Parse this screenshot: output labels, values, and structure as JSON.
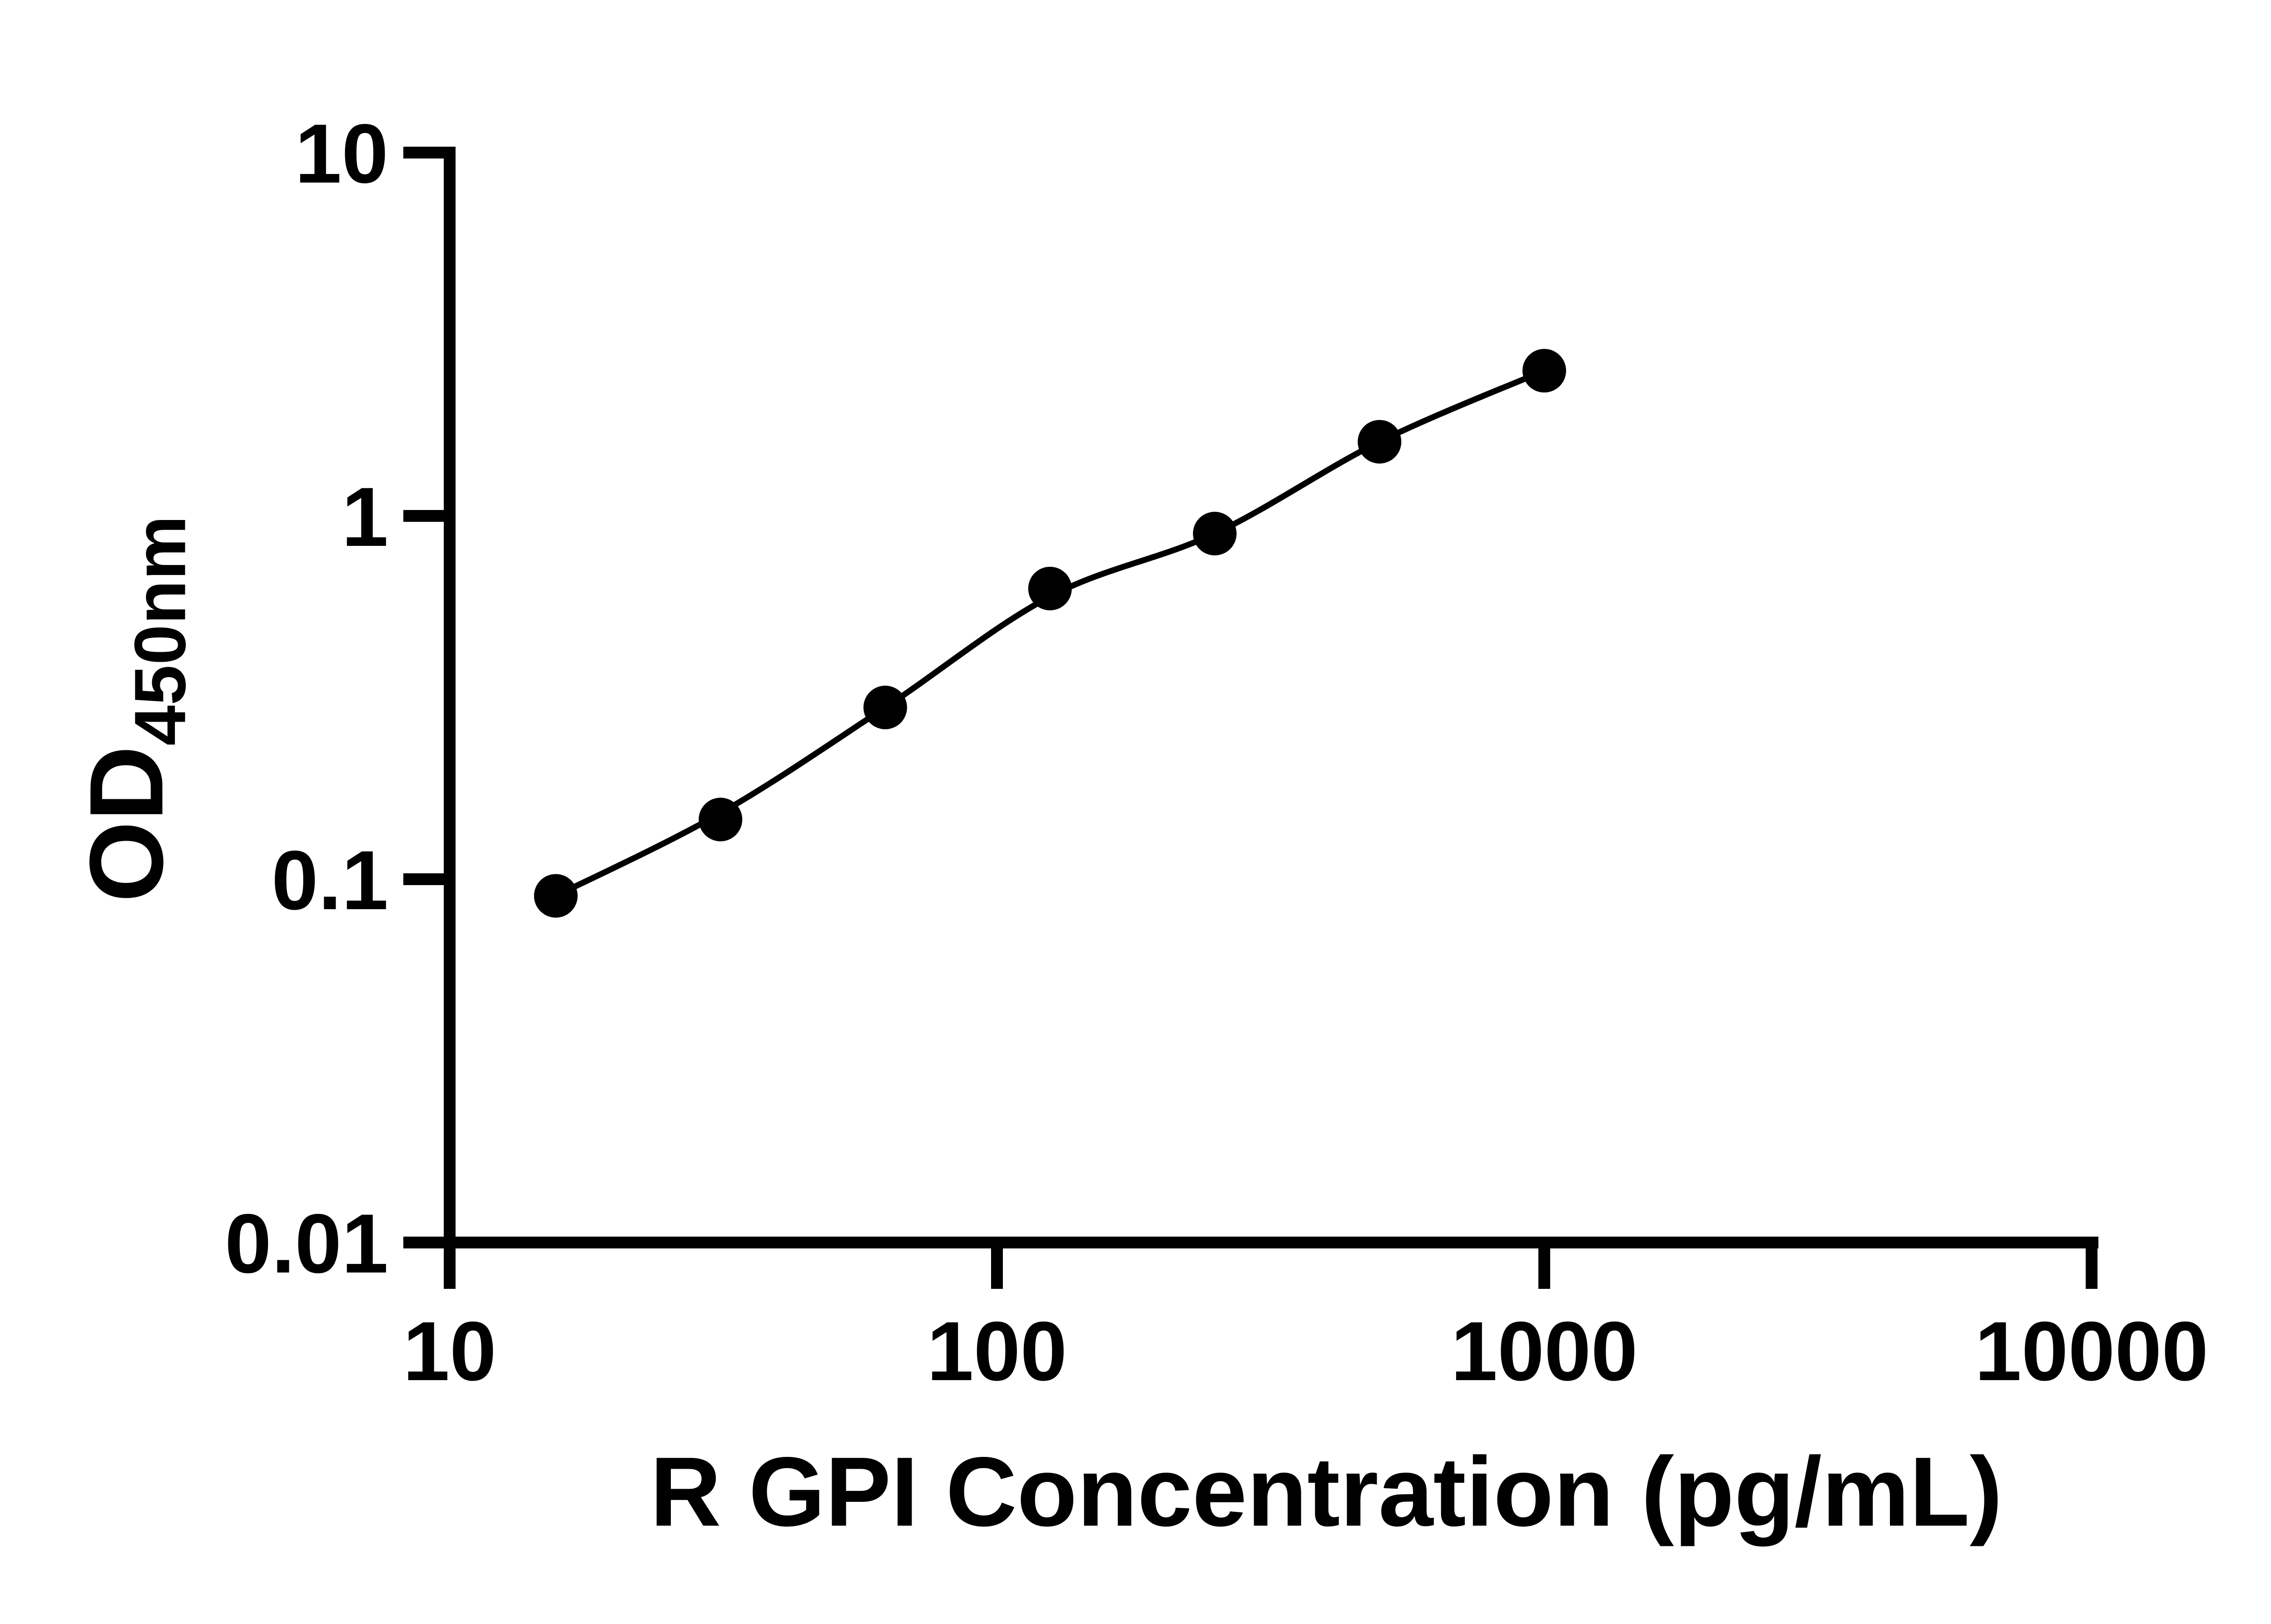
{
  "figure": {
    "background": "#ffffff",
    "ink_color": "#000000"
  },
  "chart_data": {
    "type": "scatter",
    "title": "",
    "xlabel": "R GPI Concentration (pg/mL)",
    "ylabel_main": "OD",
    "ylabel_sub": "450nm",
    "x_scale": "log",
    "y_scale": "log",
    "xlim": [
      10,
      10000
    ],
    "ylim": [
      0.01,
      10
    ],
    "x_ticks": [
      10,
      100,
      1000,
      10000
    ],
    "x_tick_labels": [
      "10",
      "100",
      "1000",
      "10000"
    ],
    "y_ticks": [
      10,
      1,
      0.1,
      0.01
    ],
    "y_tick_labels": [
      "10",
      "1",
      "0.1",
      "0.01"
    ],
    "grid": false,
    "legend": null,
    "series": [
      {
        "name": "standard-curve-points",
        "marker": "filled-circle",
        "color": "#000000",
        "x": [
          15.63,
          31.25,
          62.5,
          125,
          250,
          500,
          1000
        ],
        "y": [
          0.09,
          0.146,
          0.297,
          0.631,
          0.894,
          1.6,
          2.51
        ]
      }
    ],
    "fit_curve": {
      "name": "four-parameter-fit-line",
      "color": "#000000",
      "x": [
        15.63,
        31.25,
        62.5,
        125,
        250,
        500,
        1000
      ],
      "y": [
        0.09,
        0.152,
        0.297,
        0.6,
        0.894,
        1.6,
        2.51
      ]
    }
  }
}
